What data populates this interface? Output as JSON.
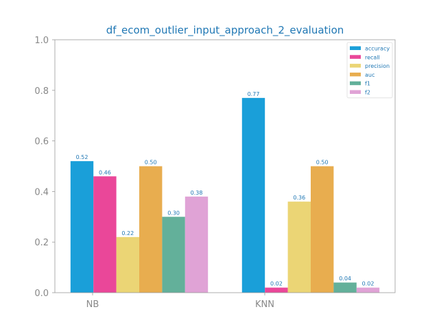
{
  "chart_data": {
    "type": "bar",
    "title": "df_ecom_outlier_input_approach_2_evaluation",
    "xlabel": "",
    "ylabel": "",
    "categories": [
      "NB",
      "KNN"
    ],
    "ylim": [
      0,
      1.0
    ],
    "yticks": [
      "0.0",
      "0.2",
      "0.4",
      "0.6",
      "0.8",
      "1.0"
    ],
    "grid": false,
    "legend_position": "top-right",
    "series": [
      {
        "name": "accuracy",
        "color": "#1a9fd9",
        "values": [
          0.52,
          0.77
        ],
        "labels": [
          "0.52",
          "0.77"
        ]
      },
      {
        "name": "recall",
        "color": "#ea4799",
        "values": [
          0.46,
          0.02
        ],
        "labels": [
          "0.46",
          "0.02"
        ]
      },
      {
        "name": "precision",
        "color": "#ebd575",
        "values": [
          0.22,
          0.36
        ],
        "labels": [
          "0.22",
          "0.36"
        ]
      },
      {
        "name": "auc",
        "color": "#e8ad4f",
        "values": [
          0.5,
          0.5
        ],
        "labels": [
          "0.50",
          "0.50"
        ]
      },
      {
        "name": "f1",
        "color": "#63b09a",
        "values": [
          0.3,
          0.04
        ],
        "labels": [
          "0.30",
          "0.04"
        ]
      },
      {
        "name": "f2",
        "color": "#e0a3d6",
        "values": [
          0.38,
          0.02
        ],
        "labels": [
          "0.38",
          "0.02"
        ]
      }
    ]
  }
}
